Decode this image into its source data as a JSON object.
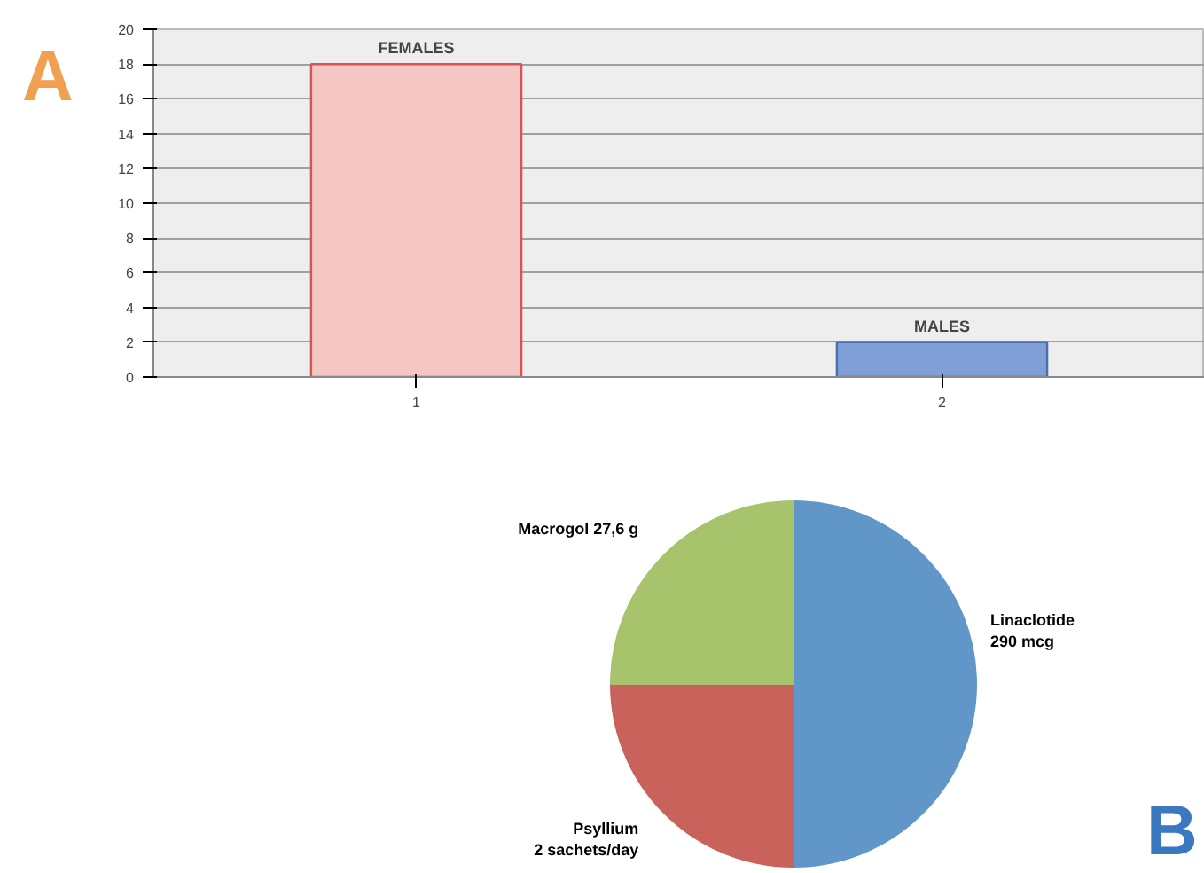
{
  "chart_data": [
    {
      "type": "bar",
      "categories": [
        "1",
        "2"
      ],
      "values": [
        18,
        2
      ],
      "colors": [
        "#f4c6c4",
        "#7f9fd6"
      ],
      "ylim": [
        0,
        20
      ],
      "yticks": [
        0,
        2,
        4,
        6,
        8,
        10,
        12,
        14,
        16,
        18,
        20
      ],
      "grid": "y",
      "annotations": [
        "A",
        {
          "text": "FEMALES",
          "x": "1",
          "y": 18
        },
        {
          "text": "MALES",
          "x": "2",
          "y": 2
        }
      ]
    },
    {
      "type": "pie",
      "categories": [
        "Linaclotide\n290 mcg",
        "Psyllium\n2 sachets/day",
        "Macrogol 27,6 g"
      ],
      "values": [
        50,
        25,
        25
      ],
      "colors": [
        "#6096c8",
        "#ca625c",
        "#a7c46c"
      ],
      "annotations": [
        "B"
      ]
    }
  ]
}
